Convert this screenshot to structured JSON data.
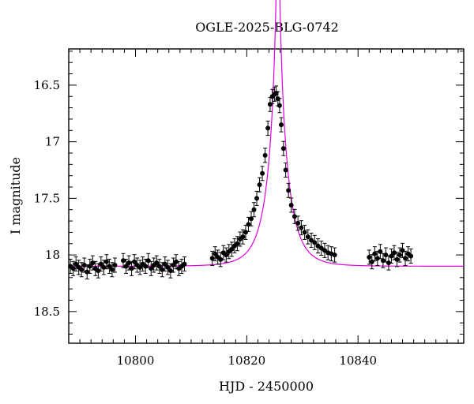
{
  "chart_data": {
    "type": "scatter",
    "title": "OGLE-2025-BLG-0742",
    "xlabel": "HJD - 2450000",
    "ylabel": "I magnitude",
    "xlim": [
      10788,
      10859
    ],
    "ylim": [
      18.78,
      16.18
    ],
    "y_inverted": true,
    "grid": false,
    "x_ticks": [
      10800,
      10820,
      10840
    ],
    "y_ticks": [
      16.5,
      17,
      17.5,
      18,
      18.5
    ],
    "x_tick_labels": [
      "10800",
      "10820",
      "10840"
    ],
    "y_tick_labels": [
      "16.5",
      "17",
      "17.5",
      "18",
      "18.5"
    ],
    "colors": {
      "points": "#000000",
      "model": "#e000e0"
    },
    "model": {
      "type": "paczynski",
      "t0": 10825.6,
      "tE": 3.6,
      "u0": 0.063,
      "base": 18.1
    },
    "series": [
      {
        "x": [
          10788.3,
          10788.8,
          10789.3,
          10789.8,
          10790.3,
          10790.8,
          10791.3,
          10791.8,
          10792.3,
          10792.8,
          10793.3,
          10793.8,
          10794.3,
          10794.8,
          10795.3,
          10795.8,
          10796.3,
          10797.8,
          10798.3,
          10798.8,
          10799.3,
          10799.8,
          10800.3,
          10800.8,
          10801.3,
          10801.8,
          10802.3,
          10802.8,
          10803.3,
          10803.8,
          10804.3,
          10804.8,
          10805.3,
          10805.8,
          10806.3,
          10806.8,
          10807.3,
          10807.8,
          10808.3,
          10808.8,
          10813.8,
          10814.3,
          10814.8,
          10815.3,
          10815.8,
          10816.3,
          10816.8,
          10817.3,
          10817.8,
          10818.3,
          10818.8,
          10819.3,
          10819.8,
          10820.3,
          10820.8,
          10821.3,
          10821.8,
          10822.3,
          10822.8,
          10823.3,
          10823.8,
          10824.2,
          10824.6,
          10825.0,
          10825.3,
          10825.6,
          10825.9,
          10826.2,
          10826.6,
          10827.0,
          10827.5,
          10828.0,
          10828.6,
          10829.2,
          10829.8,
          10830.4,
          10831.0,
          10831.6,
          10832.2,
          10832.8,
          10833.4,
          10834.0,
          10834.6,
          10835.2,
          10835.8,
          10842.0,
          10842.5,
          10843.0,
          10843.5,
          10844.0,
          10844.5,
          10845.0,
          10845.5,
          10846.0,
          10846.5,
          10847.0,
          10847.5,
          10848.0,
          10848.5,
          10849.0,
          10849.5
        ],
        "y": [
          18.1,
          18.12,
          18.08,
          18.11,
          18.13,
          18.09,
          18.15,
          18.1,
          18.07,
          18.12,
          18.14,
          18.08,
          18.11,
          18.06,
          18.1,
          18.13,
          18.09,
          18.05,
          18.1,
          18.07,
          18.12,
          18.06,
          18.09,
          18.11,
          18.08,
          18.1,
          18.05,
          18.12,
          18.09,
          18.07,
          18.1,
          18.13,
          18.08,
          18.11,
          18.14,
          18.09,
          18.06,
          18.12,
          18.1,
          18.08,
          18.03,
          17.99,
          18.02,
          18.04,
          17.98,
          18.0,
          17.97,
          17.95,
          17.92,
          17.9,
          17.86,
          17.84,
          17.8,
          17.73,
          17.68,
          17.6,
          17.5,
          17.38,
          17.28,
          17.12,
          16.88,
          16.67,
          16.6,
          16.58,
          16.57,
          16.62,
          16.68,
          16.85,
          17.06,
          17.25,
          17.43,
          17.56,
          17.66,
          17.72,
          17.76,
          17.8,
          17.84,
          17.87,
          17.89,
          17.92,
          17.94,
          17.96,
          17.98,
          17.99,
          18.0,
          18.02,
          18.06,
          17.99,
          18.03,
          17.97,
          18.05,
          18.0,
          18.07,
          18.01,
          17.98,
          18.04,
          18.0,
          17.96,
          18.03,
          17.99,
          18.01
        ]
      }
    ]
  }
}
